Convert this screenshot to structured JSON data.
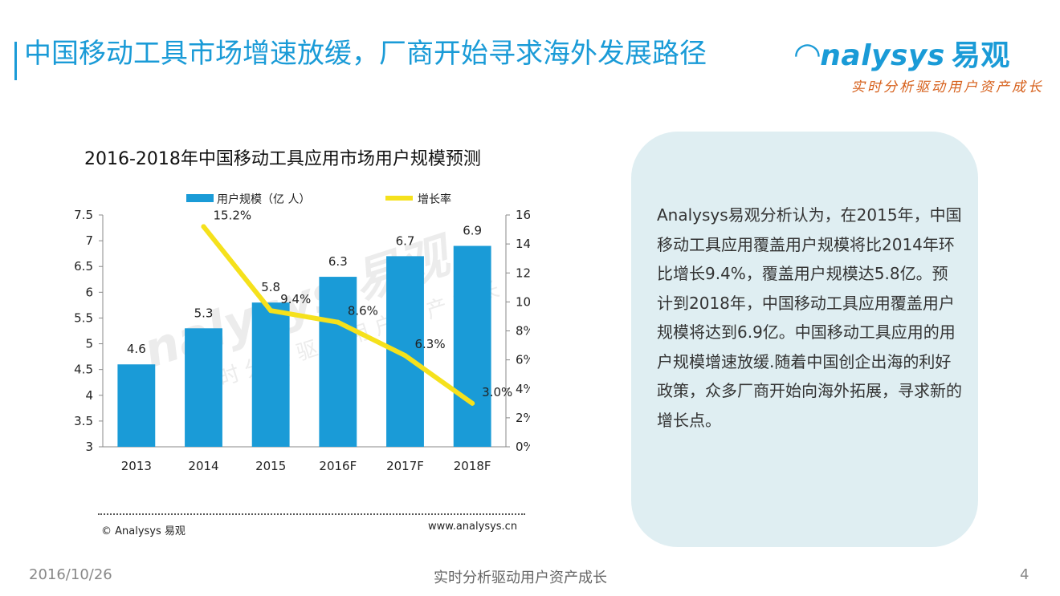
{
  "page": {
    "title": "中国移动工具市场增速放缓，厂商开始寻求海外发展路径"
  },
  "brand": {
    "logo_text": "nalysys",
    "logo_cn": "易观",
    "slogan": "实时分析驱动用户资产成长"
  },
  "watermark": {
    "logo": "nalysys 易观",
    "slogan": "实时分析驱动用户资产成长"
  },
  "chart_data": {
    "type": "bar",
    "title": "2016-2018年中国移动工具应用市场用户规模预测",
    "categories": [
      "2013",
      "2014",
      "2015",
      "2016F",
      "2017F",
      "2018F"
    ],
    "series": [
      {
        "name": "用户规模（亿 人）",
        "type": "bar",
        "axis": "left",
        "color": "#1a9bd7",
        "values": [
          4.6,
          5.3,
          5.8,
          6.3,
          6.7,
          6.9
        ],
        "labels": [
          "4.6",
          "5.3",
          "5.8",
          "6.3",
          "6.7",
          "6.9"
        ]
      },
      {
        "name": "增长率",
        "type": "line",
        "axis": "right",
        "color": "#f5e11c",
        "values": [
          null,
          15.2,
          9.4,
          8.6,
          6.3,
          3.0
        ],
        "labels": [
          "",
          "15.2%",
          "9.4%",
          "8.6%",
          "6.3%",
          "3.0%"
        ]
      }
    ],
    "left_axis": {
      "min": 3,
      "max": 7.5,
      "ticks": [
        "3",
        "3.5",
        "4",
        "4.5",
        "5",
        "5.5",
        "6",
        "6.5",
        "7",
        "7.5"
      ]
    },
    "right_axis": {
      "min": 0,
      "max": 16,
      "ticks": [
        "0%",
        "2%",
        "4%",
        "6%",
        "8%",
        "10%",
        "12%",
        "14%",
        "16%"
      ]
    },
    "legend_position": "top"
  },
  "source": {
    "copyright": "© Analysys 易观",
    "website": "www.analysys.cn"
  },
  "info_box": {
    "text": "Analysys易观分析认为，在2015年，中国移动工具应用覆盖用户规模将比2014年环比增长9.4%，覆盖用户规模达5.8亿。预计到2018年，中国移动工具应用覆盖用户规模将达到6.9亿。中国移动工具应用的用户规模增速放缓.随着中国创企出海的利好政策，众多厂商开始向海外拓展，寻求新的增长点。"
  },
  "footer": {
    "date": "2016/10/26",
    "tagline": "实时分析驱动用户资产成长",
    "page_number": "4"
  },
  "colors": {
    "accent": "#1a9bd7",
    "line": "#f5e11c",
    "slogan": "#d65f1a",
    "info_bg": "#dfeef2"
  }
}
